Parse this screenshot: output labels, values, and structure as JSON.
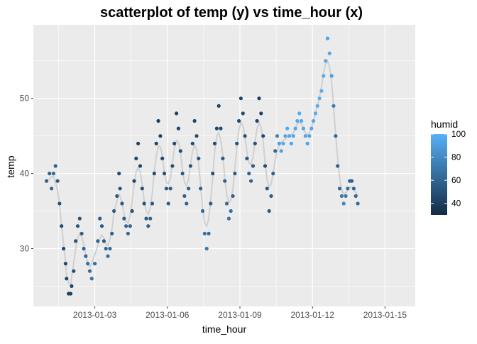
{
  "chart_data": {
    "type": "scatter",
    "title": "scatterplot of temp (y) vs time_hour (x)",
    "xlabel": "time_hour",
    "ylabel": "temp",
    "x_ticks": [
      "2013-01-03",
      "2013-01-06",
      "2013-01-09",
      "2013-01-12",
      "2013-01-15"
    ],
    "y_ticks": [
      30,
      40,
      50
    ],
    "xlim": [
      "2012-12-31T11:00",
      "2013-01-16T06:00"
    ],
    "ylim": [
      22.3,
      59.8
    ],
    "grid": true,
    "background_color": "#ebebeb",
    "grid_color": "#ffffff",
    "smooth_line_color": "#d0d0d0",
    "legend": {
      "title": "humid",
      "position": "right",
      "ticks": [
        40,
        60,
        80,
        100
      ],
      "range": [
        30,
        100
      ],
      "color_low": "#132b43",
      "color_high": "#56b1f7"
    },
    "series_points": [
      {
        "x": "2013-01-01T00:00",
        "y": 39.0,
        "h": 59
      },
      {
        "x": "2013-01-01T03:00",
        "y": 40.0,
        "h": 59
      },
      {
        "x": "2013-01-01T05:00",
        "y": 38.0,
        "h": 61
      },
      {
        "x": "2013-01-01T07:00",
        "y": 40.0,
        "h": 64
      },
      {
        "x": "2013-01-01T09:00",
        "y": 41.0,
        "h": 58
      },
      {
        "x": "2013-01-01T11:00",
        "y": 39.0,
        "h": 55
      },
      {
        "x": "2013-01-01T13:00",
        "y": 36.0,
        "h": 52
      },
      {
        "x": "2013-01-01T15:00",
        "y": 33.0,
        "h": 48
      },
      {
        "x": "2013-01-01T17:00",
        "y": 30.0,
        "h": 46
      },
      {
        "x": "2013-01-01T19:00",
        "y": 28.0,
        "h": 45
      },
      {
        "x": "2013-01-01T20:00",
        "y": 26.0,
        "h": 44
      },
      {
        "x": "2013-01-01T22:00",
        "y": 24.0,
        "h": 42
      },
      {
        "x": "2013-01-02T00:00",
        "y": 24.0,
        "h": 42
      },
      {
        "x": "2013-01-02T01:00",
        "y": 25.0,
        "h": 45
      },
      {
        "x": "2013-01-02T03:00",
        "y": 27.0,
        "h": 48
      },
      {
        "x": "2013-01-02T05:00",
        "y": 31.0,
        "h": 52
      },
      {
        "x": "2013-01-02T07:00",
        "y": 33.0,
        "h": 53
      },
      {
        "x": "2013-01-02T09:00",
        "y": 34.0,
        "h": 52
      },
      {
        "x": "2013-01-02T11:00",
        "y": 32.0,
        "h": 57
      },
      {
        "x": "2013-01-02T13:00",
        "y": 30.0,
        "h": 60
      },
      {
        "x": "2013-01-02T15:00",
        "y": 29.0,
        "h": 62
      },
      {
        "x": "2013-01-02T17:00",
        "y": 28.0,
        "h": 64
      },
      {
        "x": "2013-01-02T19:00",
        "y": 27.0,
        "h": 66
      },
      {
        "x": "2013-01-02T21:00",
        "y": 26.0,
        "h": 67
      },
      {
        "x": "2013-01-03T00:00",
        "y": 28.0,
        "h": 65
      },
      {
        "x": "2013-01-03T03:00",
        "y": 31.0,
        "h": 60
      },
      {
        "x": "2013-01-03T05:00",
        "y": 34.0,
        "h": 55
      },
      {
        "x": "2013-01-03T07:00",
        "y": 33.0,
        "h": 53
      },
      {
        "x": "2013-01-03T09:00",
        "y": 31.0,
        "h": 56
      },
      {
        "x": "2013-01-03T11:00",
        "y": 30.0,
        "h": 62
      },
      {
        "x": "2013-01-03T13:00",
        "y": 29.0,
        "h": 66
      },
      {
        "x": "2013-01-03T15:00",
        "y": 30.0,
        "h": 63
      },
      {
        "x": "2013-01-03T17:00",
        "y": 32.0,
        "h": 58
      },
      {
        "x": "2013-01-03T19:00",
        "y": 35.0,
        "h": 55
      },
      {
        "x": "2013-01-03T22:00",
        "y": 37.0,
        "h": 55
      },
      {
        "x": "2013-01-04T00:00",
        "y": 40.0,
        "h": 47
      },
      {
        "x": "2013-01-04T01:00",
        "y": 38.0,
        "h": 50
      },
      {
        "x": "2013-01-04T03:00",
        "y": 36.0,
        "h": 55
      },
      {
        "x": "2013-01-04T05:00",
        "y": 34.0,
        "h": 58
      },
      {
        "x": "2013-01-04T07:00",
        "y": 33.0,
        "h": 61
      },
      {
        "x": "2013-01-04T09:00",
        "y": 32.0,
        "h": 62
      },
      {
        "x": "2013-01-04T11:00",
        "y": 33.0,
        "h": 58
      },
      {
        "x": "2013-01-04T13:00",
        "y": 35.0,
        "h": 50
      },
      {
        "x": "2013-01-04T15:00",
        "y": 39.0,
        "h": 46
      },
      {
        "x": "2013-01-04T17:00",
        "y": 42.0,
        "h": 45
      },
      {
        "x": "2013-01-04T19:00",
        "y": 44.0,
        "h": 42
      },
      {
        "x": "2013-01-04T21:00",
        "y": 41.0,
        "h": 44
      },
      {
        "x": "2013-01-04T23:00",
        "y": 38.0,
        "h": 48
      },
      {
        "x": "2013-01-05T01:00",
        "y": 36.0,
        "h": 52
      },
      {
        "x": "2013-01-05T03:00",
        "y": 34.0,
        "h": 55
      },
      {
        "x": "2013-01-05T05:00",
        "y": 33.0,
        "h": 58
      },
      {
        "x": "2013-01-05T07:00",
        "y": 34.0,
        "h": 60
      },
      {
        "x": "2013-01-05T09:00",
        "y": 36.0,
        "h": 55
      },
      {
        "x": "2013-01-05T11:00",
        "y": 40.0,
        "h": 48
      },
      {
        "x": "2013-01-05T13:00",
        "y": 44.0,
        "h": 43
      },
      {
        "x": "2013-01-05T15:00",
        "y": 47.0,
        "h": 40
      },
      {
        "x": "2013-01-05T17:00",
        "y": 45.0,
        "h": 42
      },
      {
        "x": "2013-01-05T19:00",
        "y": 42.0,
        "h": 45
      },
      {
        "x": "2013-01-05T21:00",
        "y": 40.0,
        "h": 50
      },
      {
        "x": "2013-01-05T23:00",
        "y": 38.0,
        "h": 53
      },
      {
        "x": "2013-01-06T01:00",
        "y": 36.0,
        "h": 57
      },
      {
        "x": "2013-01-06T03:00",
        "y": 38.0,
        "h": 56
      },
      {
        "x": "2013-01-06T05:00",
        "y": 41.0,
        "h": 50
      },
      {
        "x": "2013-01-06T07:00",
        "y": 44.0,
        "h": 46
      },
      {
        "x": "2013-01-06T09:00",
        "y": 48.0,
        "h": 43
      },
      {
        "x": "2013-01-06T11:00",
        "y": 46.0,
        "h": 45
      },
      {
        "x": "2013-01-06T13:00",
        "y": 43.0,
        "h": 49
      },
      {
        "x": "2013-01-06T15:00",
        "y": 40.0,
        "h": 54
      },
      {
        "x": "2013-01-06T17:00",
        "y": 37.0,
        "h": 58
      },
      {
        "x": "2013-01-06T19:00",
        "y": 36.0,
        "h": 60
      },
      {
        "x": "2013-01-06T21:00",
        "y": 38.0,
        "h": 58
      },
      {
        "x": "2013-01-06T23:00",
        "y": 41.0,
        "h": 52
      },
      {
        "x": "2013-01-07T01:00",
        "y": 44.0,
        "h": 46
      },
      {
        "x": "2013-01-07T03:00",
        "y": 47.0,
        "h": 44
      },
      {
        "x": "2013-01-07T05:00",
        "y": 45.0,
        "h": 47
      },
      {
        "x": "2013-01-07T07:00",
        "y": 42.0,
        "h": 53
      },
      {
        "x": "2013-01-07T09:00",
        "y": 38.0,
        "h": 58
      },
      {
        "x": "2013-01-07T11:00",
        "y": 35.0,
        "h": 63
      },
      {
        "x": "2013-01-07T13:00",
        "y": 32.0,
        "h": 68
      },
      {
        "x": "2013-01-07T15:00",
        "y": 30.0,
        "h": 70
      },
      {
        "x": "2013-01-07T17:00",
        "y": 32.0,
        "h": 64
      },
      {
        "x": "2013-01-07T19:00",
        "y": 36.0,
        "h": 56
      },
      {
        "x": "2013-01-07T21:00",
        "y": 40.0,
        "h": 50
      },
      {
        "x": "2013-01-07T23:00",
        "y": 44.0,
        "h": 46
      },
      {
        "x": "2013-01-08T01:00",
        "y": 46.0,
        "h": 45
      },
      {
        "x": "2013-01-08T03:00",
        "y": 49.0,
        "h": 42
      },
      {
        "x": "2013-01-08T05:00",
        "y": 46.0,
        "h": 46
      },
      {
        "x": "2013-01-08T07:00",
        "y": 42.0,
        "h": 54
      },
      {
        "x": "2013-01-08T09:00",
        "y": 39.0,
        "h": 60
      },
      {
        "x": "2013-01-08T11:00",
        "y": 36.0,
        "h": 64
      },
      {
        "x": "2013-01-08T13:00",
        "y": 34.0,
        "h": 67
      },
      {
        "x": "2013-01-08T15:00",
        "y": 35.0,
        "h": 65
      },
      {
        "x": "2013-01-08T17:00",
        "y": 37.0,
        "h": 60
      },
      {
        "x": "2013-01-08T19:00",
        "y": 40.0,
        "h": 56
      },
      {
        "x": "2013-01-08T21:00",
        "y": 44.0,
        "h": 50
      },
      {
        "x": "2013-01-08T23:00",
        "y": 47.0,
        "h": 46
      },
      {
        "x": "2013-01-09T01:00",
        "y": 50.0,
        "h": 44
      },
      {
        "x": "2013-01-09T03:00",
        "y": 48.0,
        "h": 46
      },
      {
        "x": "2013-01-09T05:00",
        "y": 45.0,
        "h": 50
      },
      {
        "x": "2013-01-09T07:00",
        "y": 42.0,
        "h": 55
      },
      {
        "x": "2013-01-09T09:00",
        "y": 40.0,
        "h": 58
      },
      {
        "x": "2013-01-09T11:00",
        "y": 39.0,
        "h": 60
      },
      {
        "x": "2013-01-09T13:00",
        "y": 41.0,
        "h": 56
      },
      {
        "x": "2013-01-09T15:00",
        "y": 44.0,
        "h": 50
      },
      {
        "x": "2013-01-09T17:00",
        "y": 47.0,
        "h": 45
      },
      {
        "x": "2013-01-09T19:00",
        "y": 50.0,
        "h": 40
      },
      {
        "x": "2013-01-09T21:00",
        "y": 48.0,
        "h": 42
      },
      {
        "x": "2013-01-09T23:00",
        "y": 45.0,
        "h": 46
      },
      {
        "x": "2013-01-10T01:00",
        "y": 41.0,
        "h": 50
      },
      {
        "x": "2013-01-10T03:00",
        "y": 38.0,
        "h": 53
      },
      {
        "x": "2013-01-10T05:00",
        "y": 35.0,
        "h": 55
      },
      {
        "x": "2013-01-10T07:00",
        "y": 37.0,
        "h": 56
      },
      {
        "x": "2013-01-10T09:00",
        "y": 40.0,
        "h": 58
      },
      {
        "x": "2013-01-10T11:00",
        "y": 43.0,
        "h": 62
      },
      {
        "x": "2013-01-10T13:00",
        "y": 45.0,
        "h": 75
      },
      {
        "x": "2013-01-10T15:00",
        "y": 44.0,
        "h": 90
      },
      {
        "x": "2013-01-10T17:00",
        "y": 43.0,
        "h": 93
      },
      {
        "x": "2013-01-10T19:00",
        "y": 44.0,
        "h": 94
      },
      {
        "x": "2013-01-10T21:00",
        "y": 45.0,
        "h": 95
      },
      {
        "x": "2013-01-10T23:00",
        "y": 46.0,
        "h": 96
      },
      {
        "x": "2013-01-11T01:00",
        "y": 45.0,
        "h": 95
      },
      {
        "x": "2013-01-11T03:00",
        "y": 44.0,
        "h": 93
      },
      {
        "x": "2013-01-11T05:00",
        "y": 45.0,
        "h": 94
      },
      {
        "x": "2013-01-11T07:00",
        "y": 46.0,
        "h": 96
      },
      {
        "x": "2013-01-11T09:00",
        "y": 47.0,
        "h": 96
      },
      {
        "x": "2013-01-11T11:00",
        "y": 48.0,
        "h": 97
      },
      {
        "x": "2013-01-11T13:00",
        "y": 47.0,
        "h": 96
      },
      {
        "x": "2013-01-11T15:00",
        "y": 46.0,
        "h": 95
      },
      {
        "x": "2013-01-11T17:00",
        "y": 45.0,
        "h": 93
      },
      {
        "x": "2013-01-11T19:00",
        "y": 44.0,
        "h": 92
      },
      {
        "x": "2013-01-11T21:00",
        "y": 45.0,
        "h": 93
      },
      {
        "x": "2013-01-11T23:00",
        "y": 46.0,
        "h": 95
      },
      {
        "x": "2013-01-12T01:00",
        "y": 47.0,
        "h": 96
      },
      {
        "x": "2013-01-12T03:00",
        "y": 48.0,
        "h": 97
      },
      {
        "x": "2013-01-12T05:00",
        "y": 49.0,
        "h": 97
      },
      {
        "x": "2013-01-12T07:00",
        "y": 50.0,
        "h": 98
      },
      {
        "x": "2013-01-12T09:00",
        "y": 51.0,
        "h": 98
      },
      {
        "x": "2013-01-12T11:00",
        "y": 53.0,
        "h": 97
      },
      {
        "x": "2013-01-12T13:00",
        "y": 55.0,
        "h": 96
      },
      {
        "x": "2013-01-12T15:00",
        "y": 58.0,
        "h": 93
      },
      {
        "x": "2013-01-12T17:00",
        "y": 56.0,
        "h": 94
      },
      {
        "x": "2013-01-12T19:00",
        "y": 53.0,
        "h": 90
      },
      {
        "x": "2013-01-12T21:00",
        "y": 49.0,
        "h": 72
      },
      {
        "x": "2013-01-12T23:00",
        "y": 45.0,
        "h": 62
      },
      {
        "x": "2013-01-13T01:00",
        "y": 41.0,
        "h": 58
      },
      {
        "x": "2013-01-13T03:00",
        "y": 38.0,
        "h": 62
      },
      {
        "x": "2013-01-13T05:00",
        "y": 37.0,
        "h": 70
      },
      {
        "x": "2013-01-13T07:00",
        "y": 36.0,
        "h": 78
      },
      {
        "x": "2013-01-13T09:00",
        "y": 37.0,
        "h": 72
      },
      {
        "x": "2013-01-13T11:00",
        "y": 38.0,
        "h": 65
      },
      {
        "x": "2013-01-13T13:00",
        "y": 39.0,
        "h": 60
      },
      {
        "x": "2013-01-13T15:00",
        "y": 39.0,
        "h": 58
      },
      {
        "x": "2013-01-13T17:00",
        "y": 38.0,
        "h": 60
      },
      {
        "x": "2013-01-13T19:00",
        "y": 37.0,
        "h": 62
      },
      {
        "x": "2013-01-13T21:00",
        "y": 36.0,
        "h": 65
      }
    ]
  }
}
